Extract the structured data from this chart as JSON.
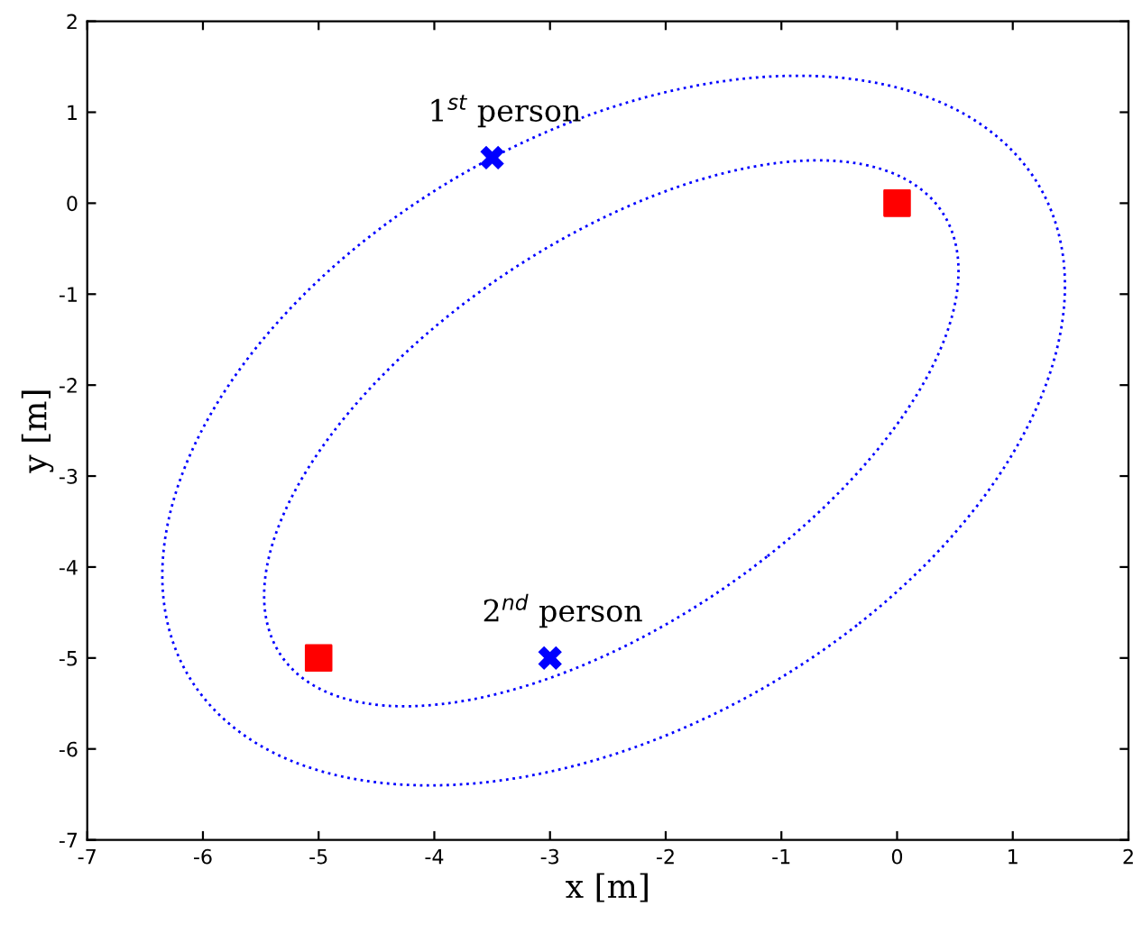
{
  "chart_data": {
    "type": "scatter",
    "xlabel": "x [m]",
    "ylabel": "y [m]",
    "xlim": [
      -7,
      2
    ],
    "ylim": [
      -7,
      2
    ],
    "xticks": [
      -7,
      -6,
      -5,
      -4,
      -3,
      -2,
      -1,
      0,
      1,
      2
    ],
    "yticks": [
      -7,
      -6,
      -5,
      -4,
      -3,
      -2,
      -1,
      0,
      1,
      2
    ],
    "grid": false,
    "legend": false,
    "annotations": [
      "1$^{st}$ person",
      "2$^{nd}$ person"
    ],
    "series": [
      {
        "color": "#ff0000",
        "marker": "square",
        "x": [
          0,
          -5
        ],
        "values": [
          0,
          -5
        ]
      },
      {
        "color": "#0000ff",
        "marker": "cross",
        "x": [
          -3.5,
          -3
        ],
        "values": [
          0.5,
          -5
        ]
      }
    ]
  }
}
